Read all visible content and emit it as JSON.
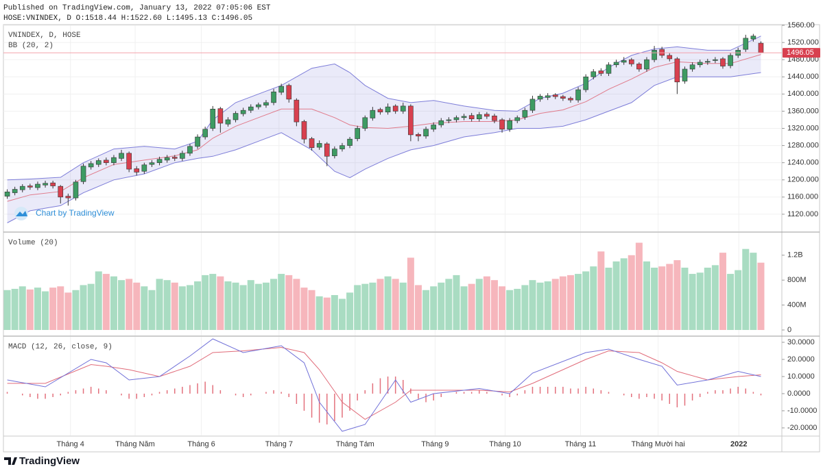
{
  "published": "Published on TradingView.com, January 13, 2022 07:05:06 EST",
  "symbol_line": "HOSE:VNINDEX, D O:1518.44 H:1522.60 L:1495.13 C:1496.05",
  "watermark": "Chart by TradingView",
  "logo": "TradingView",
  "chart_data": [
    {
      "type": "candlestick",
      "title": "VNINDEX, D, HOSE",
      "indicator": "BB (20, 2)",
      "up_color": "#3e9b63",
      "down_color": "#d8404f",
      "open": [
        1162,
        1170,
        1177,
        1186,
        1182,
        1188,
        1193,
        1185,
        1162,
        1158,
        1196,
        1230,
        1236,
        1246,
        1240,
        1250,
        1262,
        1226,
        1220,
        1236,
        1240,
        1246,
        1253,
        1250,
        1262,
        1278,
        1300,
        1320,
        1366,
        1330,
        1340,
        1354,
        1362,
        1370,
        1374,
        1380,
        1404,
        1420,
        1386,
        1336,
        1296,
        1276,
        1284,
        1256,
        1272,
        1280,
        1296,
        1320,
        1344,
        1364,
        1358,
        1372,
        1360,
        1372,
        1306,
        1302,
        1318,
        1328,
        1338,
        1340,
        1345,
        1350,
        1342,
        1353,
        1349,
        1340,
        1318,
        1338,
        1346,
        1362,
        1388,
        1392,
        1398,
        1394,
        1390,
        1386,
        1410,
        1440,
        1454,
        1448,
        1468,
        1474,
        1480,
        1470,
        1458,
        1480,
        1504,
        1490,
        1482,
        1430,
        1458,
        1468,
        1474,
        1478,
        1482,
        1466,
        1490,
        1504,
        1528,
        1518.44
      ],
      "high": [
        1178,
        1184,
        1190,
        1191,
        1196,
        1198,
        1198,
        1188,
        1168,
        1200,
        1238,
        1244,
        1250,
        1252,
        1258,
        1270,
        1266,
        1232,
        1240,
        1246,
        1254,
        1258,
        1258,
        1268,
        1284,
        1306,
        1324,
        1372,
        1370,
        1346,
        1360,
        1368,
        1376,
        1380,
        1386,
        1412,
        1424,
        1424,
        1390,
        1340,
        1300,
        1292,
        1288,
        1278,
        1286,
        1300,
        1326,
        1350,
        1370,
        1368,
        1378,
        1376,
        1380,
        1376,
        1310,
        1324,
        1334,
        1344,
        1346,
        1350,
        1354,
        1356,
        1358,
        1358,
        1354,
        1344,
        1344,
        1350,
        1368,
        1396,
        1400,
        1402,
        1402,
        1398,
        1394,
        1416,
        1446,
        1458,
        1460,
        1474,
        1480,
        1486,
        1484,
        1474,
        1486,
        1512,
        1510,
        1495,
        1486,
        1464,
        1474,
        1480,
        1482,
        1486,
        1486,
        1496,
        1508,
        1538,
        1540,
        1522.6
      ],
      "low": [
        1156,
        1164,
        1171,
        1177,
        1176,
        1182,
        1180,
        1145,
        1140,
        1152,
        1190,
        1224,
        1230,
        1234,
        1234,
        1244,
        1218,
        1210,
        1214,
        1230,
        1234,
        1240,
        1244,
        1244,
        1256,
        1272,
        1294,
        1314,
        1310,
        1324,
        1334,
        1348,
        1356,
        1364,
        1368,
        1374,
        1398,
        1380,
        1325,
        1285,
        1268,
        1270,
        1232,
        1250,
        1266,
        1274,
        1290,
        1314,
        1338,
        1352,
        1352,
        1354,
        1354,
        1290,
        1290,
        1296,
        1312,
        1322,
        1332,
        1334,
        1339,
        1336,
        1336,
        1342,
        1332,
        1310,
        1312,
        1332,
        1340,
        1356,
        1382,
        1386,
        1388,
        1384,
        1380,
        1380,
        1404,
        1434,
        1442,
        1442,
        1462,
        1468,
        1464,
        1452,
        1452,
        1474,
        1484,
        1476,
        1400,
        1424,
        1452,
        1462,
        1468,
        1472,
        1459,
        1460,
        1484,
        1498,
        1522,
        1495.13
      ],
      "close": [
        1172,
        1178,
        1185,
        1183,
        1190,
        1192,
        1186,
        1160,
        1158,
        1195,
        1232,
        1238,
        1245,
        1240,
        1252,
        1262,
        1225,
        1218,
        1235,
        1240,
        1248,
        1252,
        1250,
        1262,
        1278,
        1300,
        1318,
        1365,
        1332,
        1340,
        1355,
        1362,
        1370,
        1375,
        1380,
        1405,
        1418,
        1388,
        1335,
        1295,
        1275,
        1285,
        1255,
        1272,
        1280,
        1295,
        1320,
        1345,
        1362,
        1358,
        1370,
        1360,
        1372,
        1305,
        1302,
        1318,
        1328,
        1338,
        1340,
        1345,
        1348,
        1342,
        1352,
        1348,
        1338,
        1318,
        1338,
        1345,
        1362,
        1388,
        1395,
        1396,
        1394,
        1390,
        1386,
        1410,
        1440,
        1452,
        1448,
        1468,
        1474,
        1478,
        1470,
        1458,
        1480,
        1502,
        1490,
        1482,
        1428,
        1458,
        1468,
        1474,
        1476,
        1480,
        1465,
        1490,
        1502,
        1530,
        1535,
        1496.05
      ],
      "bb": {
        "x": [
          0,
          3,
          7,
          10,
          14,
          18,
          22,
          25,
          27,
          30,
          33,
          36,
          40,
          43,
          45,
          47,
          50,
          53,
          56,
          60,
          64,
          67,
          70,
          73,
          76,
          79,
          82,
          85,
          88,
          92,
          95,
          99
        ],
        "upper": [
          1200,
          1202,
          1206,
          1240,
          1272,
          1278,
          1272,
          1290,
          1340,
          1380,
          1400,
          1420,
          1460,
          1470,
          1450,
          1420,
          1390,
          1380,
          1385,
          1372,
          1362,
          1360,
          1390,
          1402,
          1425,
          1462,
          1490,
          1505,
          1510,
          1502,
          1502,
          1535
        ],
        "middle": [
          1150,
          1165,
          1173,
          1205,
          1236,
          1246,
          1256,
          1270,
          1297,
          1325,
          1345,
          1365,
          1365,
          1345,
          1328,
          1322,
          1320,
          1325,
          1332,
          1336,
          1336,
          1340,
          1355,
          1363,
          1382,
          1411,
          1435,
          1462,
          1475,
          1471,
          1471,
          1492
        ],
        "lower": [
          1100,
          1128,
          1140,
          1170,
          1200,
          1214,
          1240,
          1250,
          1255,
          1270,
          1290,
          1310,
          1270,
          1220,
          1205,
          1225,
          1250,
          1270,
          1280,
          1300,
          1310,
          1320,
          1320,
          1325,
          1340,
          1360,
          1380,
          1420,
          1440,
          1440,
          1440,
          1450
        ],
        "band_color": "#7c7cd8",
        "middle_color": "#e07a8a"
      },
      "last_price": 1496.05,
      "xlim": [
        -0.5,
        101.75
      ],
      "xticks": [
        {
          "value": 8.3,
          "label": "Tháng 4"
        },
        {
          "value": 16.8,
          "label": "Tháng Năm"
        },
        {
          "value": 25.5,
          "label": "Tháng 6"
        },
        {
          "value": 35.7,
          "label": "Tháng 7"
        },
        {
          "value": 45.7,
          "label": "Tháng Tám"
        },
        {
          "value": 56.2,
          "label": "Tháng 9"
        },
        {
          "value": 65.4,
          "label": "Tháng 10"
        },
        {
          "value": 75.3,
          "label": "Tháng 11"
        },
        {
          "value": 85.5,
          "label": "Tháng Mười hai"
        },
        {
          "value": 96.1,
          "label": "2022"
        }
      ],
      "ylim": [
        1080,
        1560
      ],
      "yticks": [
        {
          "value": 1120,
          "label": "1120.000"
        },
        {
          "value": 1160,
          "label": "1160.000"
        },
        {
          "value": 1200,
          "label": "1200.000"
        },
        {
          "value": 1240,
          "label": "1240.000"
        },
        {
          "value": 1280,
          "label": "1280.000"
        },
        {
          "value": 1320,
          "label": "1320.000"
        },
        {
          "value": 1360,
          "label": "1360.000"
        },
        {
          "value": 1400,
          "label": "1400.000"
        },
        {
          "value": 1440,
          "label": "1440.000"
        },
        {
          "value": 1480,
          "label": "1480.000"
        },
        {
          "value": 1520,
          "label": "1520.000"
        },
        {
          "value": 1560,
          "label": "1560.00"
        }
      ],
      "grid": true
    },
    {
      "type": "bar",
      "title": "Volume (20)",
      "up_color": "#a9dcc2",
      "down_color": "#f6b6bc",
      "values": [
        640,
        660,
        700,
        650,
        680,
        620,
        680,
        700,
        600,
        640,
        720,
        740,
        940,
        900,
        860,
        800,
        820,
        760,
        700,
        640,
        820,
        800,
        760,
        700,
        720,
        780,
        880,
        900,
        860,
        780,
        760,
        720,
        800,
        740,
        760,
        820,
        900,
        880,
        820,
        680,
        640,
        540,
        520,
        560,
        500,
        600,
        720,
        740,
        760,
        820,
        860,
        820,
        760,
        1160,
        720,
        640,
        700,
        760,
        820,
        880,
        700,
        740,
        820,
        860,
        800,
        700,
        640,
        660,
        720,
        800,
        760,
        780,
        820,
        860,
        880,
        900,
        940,
        1020,
        1260,
        1000,
        1100,
        1150,
        1200,
        1400,
        1100,
        1000,
        1020,
        1060,
        1120,
        1000,
        900,
        920,
        1000,
        1040,
        1240,
        900,
        960,
        1300,
        1240,
        1080
      ],
      "ylim": [
        -88,
        1560
      ],
      "yticks": [
        0,
        {
          "value": 400,
          "label": "400M"
        },
        {
          "value": 800,
          "label": "800M"
        },
        {
          "value": 1200,
          "label": "1.2B"
        }
      ]
    },
    {
      "type": "macd",
      "title": "MACD (12, 26, close, 9)",
      "macd": {
        "color": "#6f6fd8",
        "x": [
          0,
          5,
          11,
          13,
          16,
          20,
          24,
          27,
          31,
          36,
          39,
          41,
          44,
          47,
          51,
          53,
          56,
          62,
          66,
          69,
          76,
          79,
          83,
          86,
          88,
          92,
          96,
          99
        ],
        "values": [
          8,
          4,
          20,
          18,
          8,
          10,
          22,
          32,
          24,
          28,
          18,
          -5,
          -22,
          -18,
          8,
          -5,
          0,
          3,
          0,
          12,
          24,
          26,
          20,
          16,
          5,
          8,
          13,
          10
        ]
      },
      "signal": {
        "color": "#e06a78",
        "x": [
          0,
          5,
          11,
          13,
          16,
          20,
          24,
          27,
          31,
          36,
          39,
          41,
          44,
          47,
          51,
          53,
          56,
          62,
          66,
          69,
          76,
          79,
          83,
          86,
          88,
          92,
          96,
          99
        ],
        "values": [
          6,
          6,
          17,
          16,
          14,
          10,
          16,
          24,
          25,
          27,
          24,
          14,
          -5,
          -15,
          -5,
          2,
          2,
          2,
          1,
          6,
          20,
          25,
          24,
          18,
          13,
          8,
          10,
          11
        ]
      },
      "histogram": {
        "color": "#e3707c",
        "values": [
          1,
          0,
          -1,
          -2,
          -3,
          -3,
          -2,
          -1,
          1,
          2,
          3,
          4,
          3,
          2,
          0,
          -1,
          -3,
          -3,
          -2,
          -1,
          1,
          2,
          3,
          4,
          5,
          6,
          7,
          5,
          2,
          0,
          -1,
          -2,
          -1,
          0,
          1,
          2,
          1,
          -2,
          -6,
          -10,
          -14,
          -17,
          -18,
          -16,
          -14,
          -10,
          -4,
          2,
          6,
          9,
          10,
          10,
          8,
          3,
          -3,
          -5,
          -4,
          -2,
          0,
          1,
          1,
          1,
          2,
          1,
          0,
          -1,
          -2,
          -1,
          2,
          4,
          4,
          4,
          4,
          4,
          3,
          3,
          4,
          3,
          2,
          1,
          0,
          -1,
          -2,
          -3,
          -2,
          -3,
          -4,
          -6,
          -8,
          -7,
          -4,
          -2,
          1,
          2,
          2,
          3,
          4,
          3,
          1,
          -1
        ]
      },
      "ylim": [
        -24.4,
        33.2
      ],
      "yticks": [
        {
          "value": -20,
          "label": "-20.0000"
        },
        {
          "value": -10,
          "label": "-10.0000"
        },
        {
          "value": 0,
          "label": "0.0000"
        },
        {
          "value": 10,
          "label": "10.0000"
        },
        {
          "value": 20,
          "label": "20.0000"
        },
        {
          "value": 30,
          "label": "30.0000"
        }
      ]
    }
  ]
}
